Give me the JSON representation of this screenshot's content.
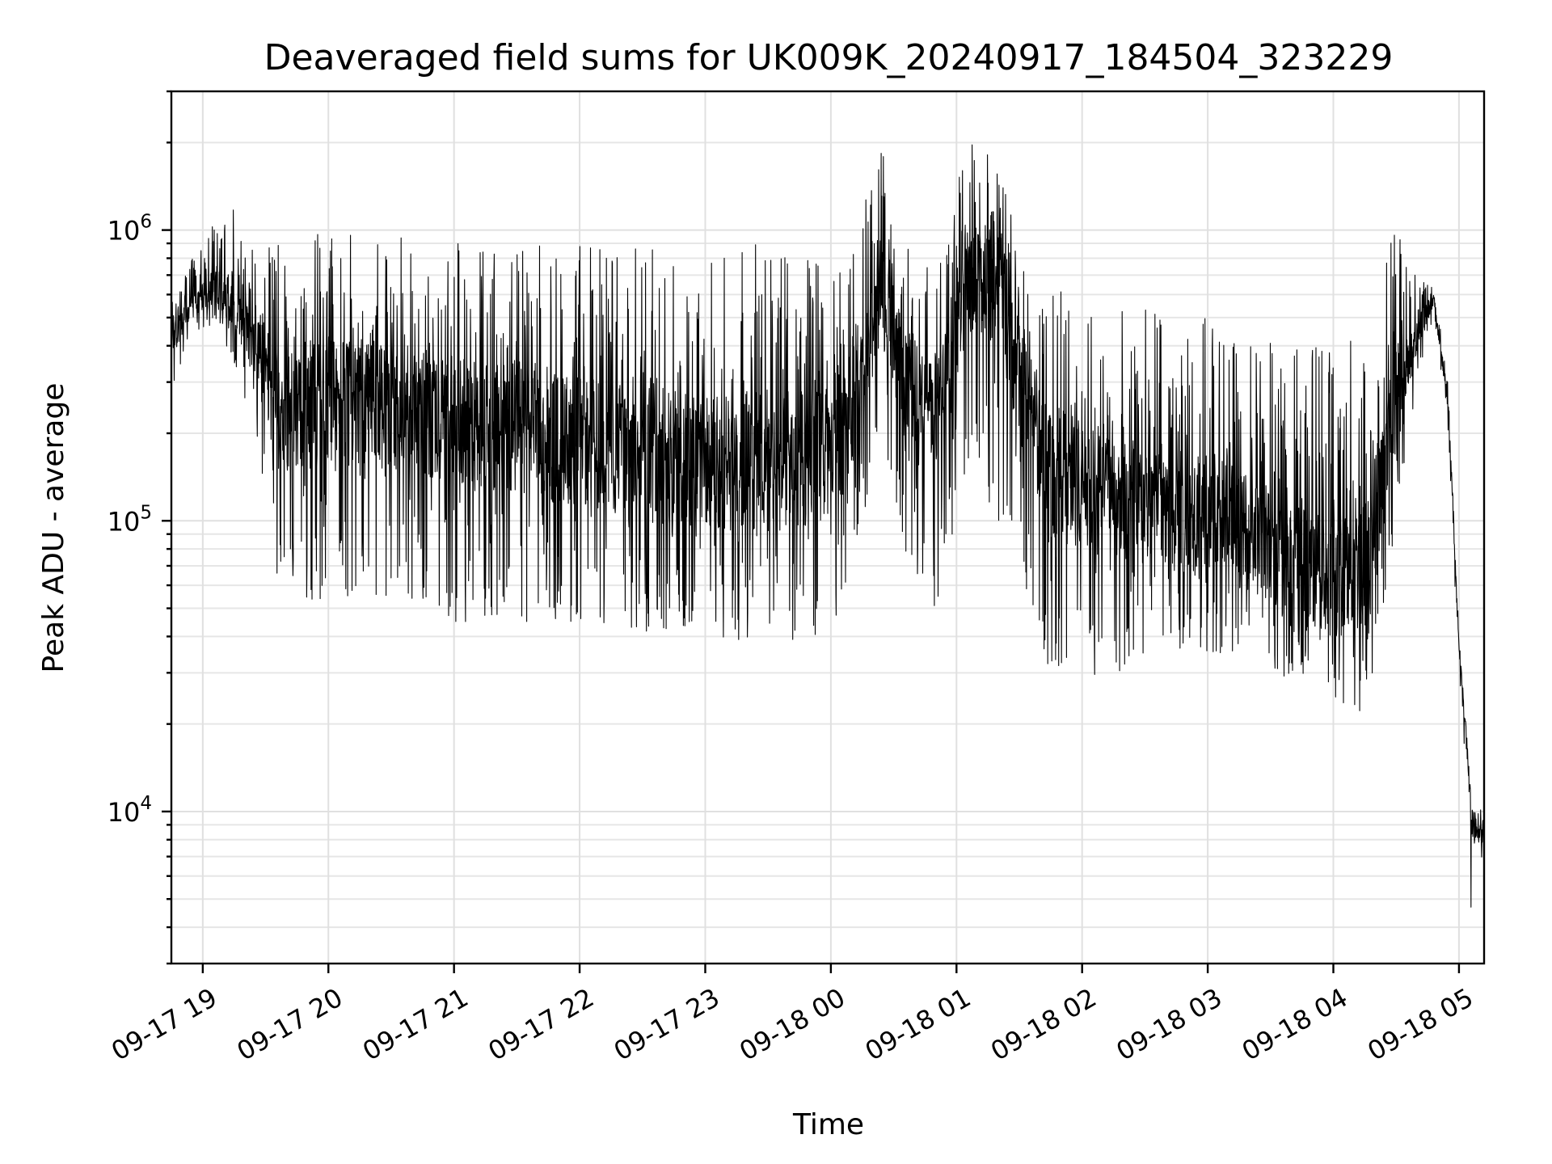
{
  "chart_data": {
    "type": "line",
    "title": "Deaveraged field sums for UK009K_20240917_184504_323229",
    "xlabel": "Time",
    "ylabel": "Peak ADU - average",
    "yscale": "log",
    "grid": "both-major-and-minor",
    "xlim": [
      "2024-09-17 18:45",
      "2024-09-18 05:12"
    ],
    "ylim": [
      3000,
      3000000
    ],
    "x_tick_labels": [
      "09-17 19",
      "09-17 20",
      "09-17 21",
      "09-17 22",
      "09-17 23",
      "09-18 00",
      "09-18 01",
      "09-18 02",
      "09-18 03",
      "09-18 04",
      "09-18 05"
    ],
    "x_tick_times": [
      "2024-09-17 19:00",
      "2024-09-17 20:00",
      "2024-09-17 21:00",
      "2024-09-17 22:00",
      "2024-09-17 23:00",
      "2024-09-18 00:00",
      "2024-09-18 01:00",
      "2024-09-18 02:00",
      "2024-09-18 03:00",
      "2024-09-18 04:00",
      "2024-09-18 05:00"
    ],
    "y_ticks": [
      {
        "base": "10",
        "exp": "4",
        "value": 10000
      },
      {
        "base": "10",
        "exp": "5",
        "value": 100000
      },
      {
        "base": "10",
        "exp": "6",
        "value": 1000000
      }
    ],
    "series": [
      {
        "color": "#000000",
        "points": [
          {
            "t": "2024-09-17 18:45",
            "base": 420000,
            "low": 280000,
            "high": 560000
          },
          {
            "t": "2024-09-17 18:55",
            "base": 540000,
            "low": 450000,
            "high": 800000
          },
          {
            "t": "2024-09-17 19:05",
            "base": 620000,
            "low": 470000,
            "high": 1100000
          },
          {
            "t": "2024-09-17 19:15",
            "base": 580000,
            "low": 350000,
            "high": 1250000
          },
          {
            "t": "2024-09-17 19:25",
            "base": 400000,
            "low": 200000,
            "high": 850000
          },
          {
            "t": "2024-09-17 19:35",
            "base": 250000,
            "low": 60000,
            "high": 900000
          },
          {
            "t": "2024-09-17 19:45",
            "base": 240000,
            "low": 50000,
            "high": 1000000
          },
          {
            "t": "2024-09-17 20:00",
            "base": 260000,
            "low": 55000,
            "high": 1000000
          },
          {
            "t": "2024-09-17 20:30",
            "base": 250000,
            "low": 55000,
            "high": 950000
          },
          {
            "t": "2024-09-17 21:00",
            "base": 220000,
            "low": 45000,
            "high": 900000
          },
          {
            "t": "2024-09-17 21:30",
            "base": 200000,
            "low": 45000,
            "high": 900000
          },
          {
            "t": "2024-09-17 22:00",
            "base": 190000,
            "low": 45000,
            "high": 900000
          },
          {
            "t": "2024-09-17 22:30",
            "base": 170000,
            "low": 40000,
            "high": 880000
          },
          {
            "t": "2024-09-17 23:00",
            "base": 160000,
            "low": 40000,
            "high": 850000
          },
          {
            "t": "2024-09-17 23:30",
            "base": 150000,
            "low": 38000,
            "high": 900000
          },
          {
            "t": "2024-09-18 00:00",
            "base": 170000,
            "low": 40000,
            "high": 800000
          },
          {
            "t": "2024-09-18 00:15",
            "base": 300000,
            "low": 100000,
            "high": 1200000
          },
          {
            "t": "2024-09-18 00:25",
            "base": 600000,
            "low": 200000,
            "high": 2000000
          },
          {
            "t": "2024-09-18 00:35",
            "base": 300000,
            "low": 80000,
            "high": 900000
          },
          {
            "t": "2024-09-18 00:50",
            "base": 250000,
            "low": 50000,
            "high": 700000
          },
          {
            "t": "2024-09-18 01:05",
            "base": 650000,
            "low": 150000,
            "high": 2000000
          },
          {
            "t": "2024-09-18 01:20",
            "base": 700000,
            "low": 100000,
            "high": 2200000
          },
          {
            "t": "2024-09-18 01:30",
            "base": 300000,
            "low": 60000,
            "high": 800000
          },
          {
            "t": "2024-09-18 01:45",
            "base": 150000,
            "low": 30000,
            "high": 650000
          },
          {
            "t": "2024-09-18 02:00",
            "base": 130000,
            "low": 28000,
            "high": 600000
          },
          {
            "t": "2024-09-18 02:30",
            "base": 120000,
            "low": 32000,
            "high": 550000
          },
          {
            "t": "2024-09-18 03:00",
            "base": 100000,
            "low": 35000,
            "high": 500000
          },
          {
            "t": "2024-09-18 03:20",
            "base": 90000,
            "low": 35000,
            "high": 450000
          },
          {
            "t": "2024-09-18 03:40",
            "base": 70000,
            "low": 28000,
            "high": 450000
          },
          {
            "t": "2024-09-18 04:00",
            "base": 65000,
            "low": 25000,
            "high": 400000
          },
          {
            "t": "2024-09-18 04:15",
            "base": 70000,
            "low": 20000,
            "high": 450000
          },
          {
            "t": "2024-09-18 04:30",
            "base": 250000,
            "low": 100000,
            "high": 1100000
          },
          {
            "t": "2024-09-18 04:40",
            "base": 450000,
            "low": 300000,
            "high": 750000
          },
          {
            "t": "2024-09-18 04:48",
            "base": 580000,
            "low": 520000,
            "high": 650000
          },
          {
            "t": "2024-09-18 04:55",
            "base": 250000,
            "low": 200000,
            "high": 300000
          },
          {
            "t": "2024-09-18 05:00",
            "base": 35000,
            "low": 28000,
            "high": 40000
          },
          {
            "t": "2024-09-18 05:03",
            "base": 20000,
            "low": 15000,
            "high": 24000
          },
          {
            "t": "2024-09-18 05:06",
            "base": 9000,
            "low": 4000,
            "high": 10500
          },
          {
            "t": "2024-09-18 05:12",
            "base": 8500,
            "low": 6000,
            "high": 10000
          }
        ]
      }
    ]
  }
}
